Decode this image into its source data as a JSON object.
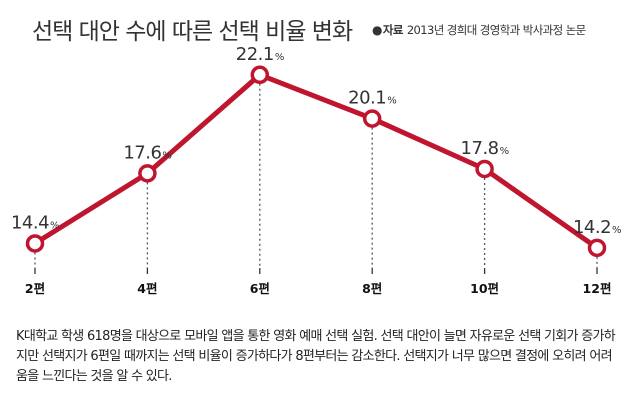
{
  "title": "선택 대안 수에 따른 선택 비율 변화",
  "source": {
    "bullet": "●",
    "label": "자료",
    "text": "2013년 경희대 경영학과 박사과정 논문"
  },
  "caption": "K대학교 학생 618명을 대상으로  모바일 앱을 통한 영화 예매 선택 실험. 선택 대안이 늘면 자유로운 선택 기회가 증가하지만 선택지가 6편일 때까지는 선택 비율이 증가하다가 8편부터는 감소한다. 선택지가 너무 많으면 결정에 오히려 어려움을 느낀다는 것을 알 수 있다.",
  "colors": {
    "line": "#c0152f",
    "marker_fill": "#ffffff",
    "dotted": "#555555"
  },
  "chart_data": {
    "type": "line",
    "categories": [
      "2편",
      "4편",
      "6편",
      "8편",
      "10편",
      "12편"
    ],
    "values": [
      14.4,
      17.6,
      22.1,
      20.1,
      17.8,
      14.2
    ],
    "value_labels": [
      "14.4",
      "17.6",
      "22.1",
      "20.1",
      "17.8",
      "14.2"
    ],
    "unit": "%",
    "grid": false,
    "ylim": [
      12,
      24
    ]
  }
}
